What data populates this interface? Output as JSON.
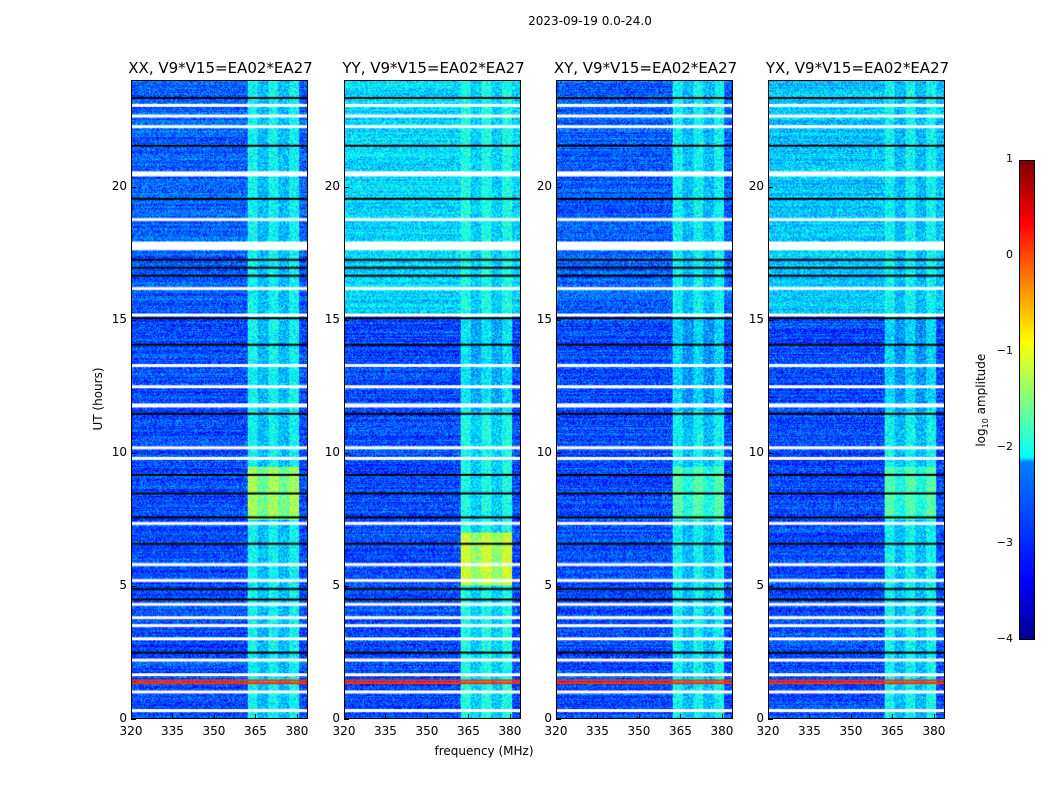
{
  "chart_data": {
    "type": "heatmap",
    "title": "2023-09-19 0.0-24.0",
    "xlabel": "frequency (MHz)",
    "ylabel": "UT (hours)",
    "xlim": [
      320,
      384
    ],
    "ylim": [
      0,
      24
    ],
    "xticks": [
      320,
      335,
      350,
      365,
      380
    ],
    "yticks": [
      0,
      5,
      10,
      15,
      20
    ],
    "colormap": "jet",
    "colorbar": {
      "label_prefix": "log",
      "label_sub": "10",
      "label_suffix": " amplitude",
      "range": [
        -4,
        1
      ],
      "ticks": [
        1,
        0,
        -1,
        -2,
        -3,
        -4
      ]
    },
    "band_mhz": [
      362,
      381
    ],
    "flagged_white_hours": [
      0.3,
      1.0,
      1.65,
      2.2,
      3.0,
      3.5,
      3.8,
      4.3,
      5.2,
      5.8,
      7.35,
      9.8,
      10.2,
      11.8,
      12.5,
      13.3,
      15.2,
      16.2,
      17.7,
      18.8,
      20.5,
      22.3,
      22.7,
      23.1
    ],
    "black_rows_hours": [
      2.5,
      4.5,
      4.9,
      6.6,
      7.6,
      8.5,
      9.2,
      11.5,
      14.1,
      15.1,
      16.7,
      17.0,
      17.3,
      19.6,
      21.6,
      23.4
    ],
    "hot_rows_hours": [
      1.35,
      1.45
    ],
    "panels": [
      {
        "title": "XX, V9*V15=EA02*EA27",
        "band_start_mhz": 362,
        "background_log_amp": -3.0,
        "upper_background_log_amp": -2.9,
        "band_log_amp": -2.2,
        "band_peak_hours": [
          7.5,
          9.5
        ],
        "band_peak_log_amp": -1.3
      },
      {
        "title": "YY, V9*V15=EA02*EA27",
        "band_start_mhz": 362,
        "background_log_amp": -3.0,
        "upper_background_log_amp": -2.3,
        "band_log_amp": -2.1,
        "band_peak_hours": [
          5.0,
          7.0
        ],
        "band_peak_log_amp": -1.1
      },
      {
        "title": "XY, V9*V15=EA02*EA27",
        "band_start_mhz": 362,
        "background_log_amp": -3.0,
        "upper_background_log_amp": -2.9,
        "band_log_amp": -2.2,
        "band_peak_hours": [
          7.5,
          9.5
        ],
        "band_peak_log_amp": -1.7
      },
      {
        "title": "YX, V9*V15=EA02*EA27",
        "band_start_mhz": 362,
        "background_log_amp": -3.0,
        "upper_background_log_amp": -2.4,
        "band_log_amp": -2.2,
        "band_peak_hours": [
          7.5,
          9.5
        ],
        "band_peak_log_amp": -1.7
      }
    ]
  }
}
